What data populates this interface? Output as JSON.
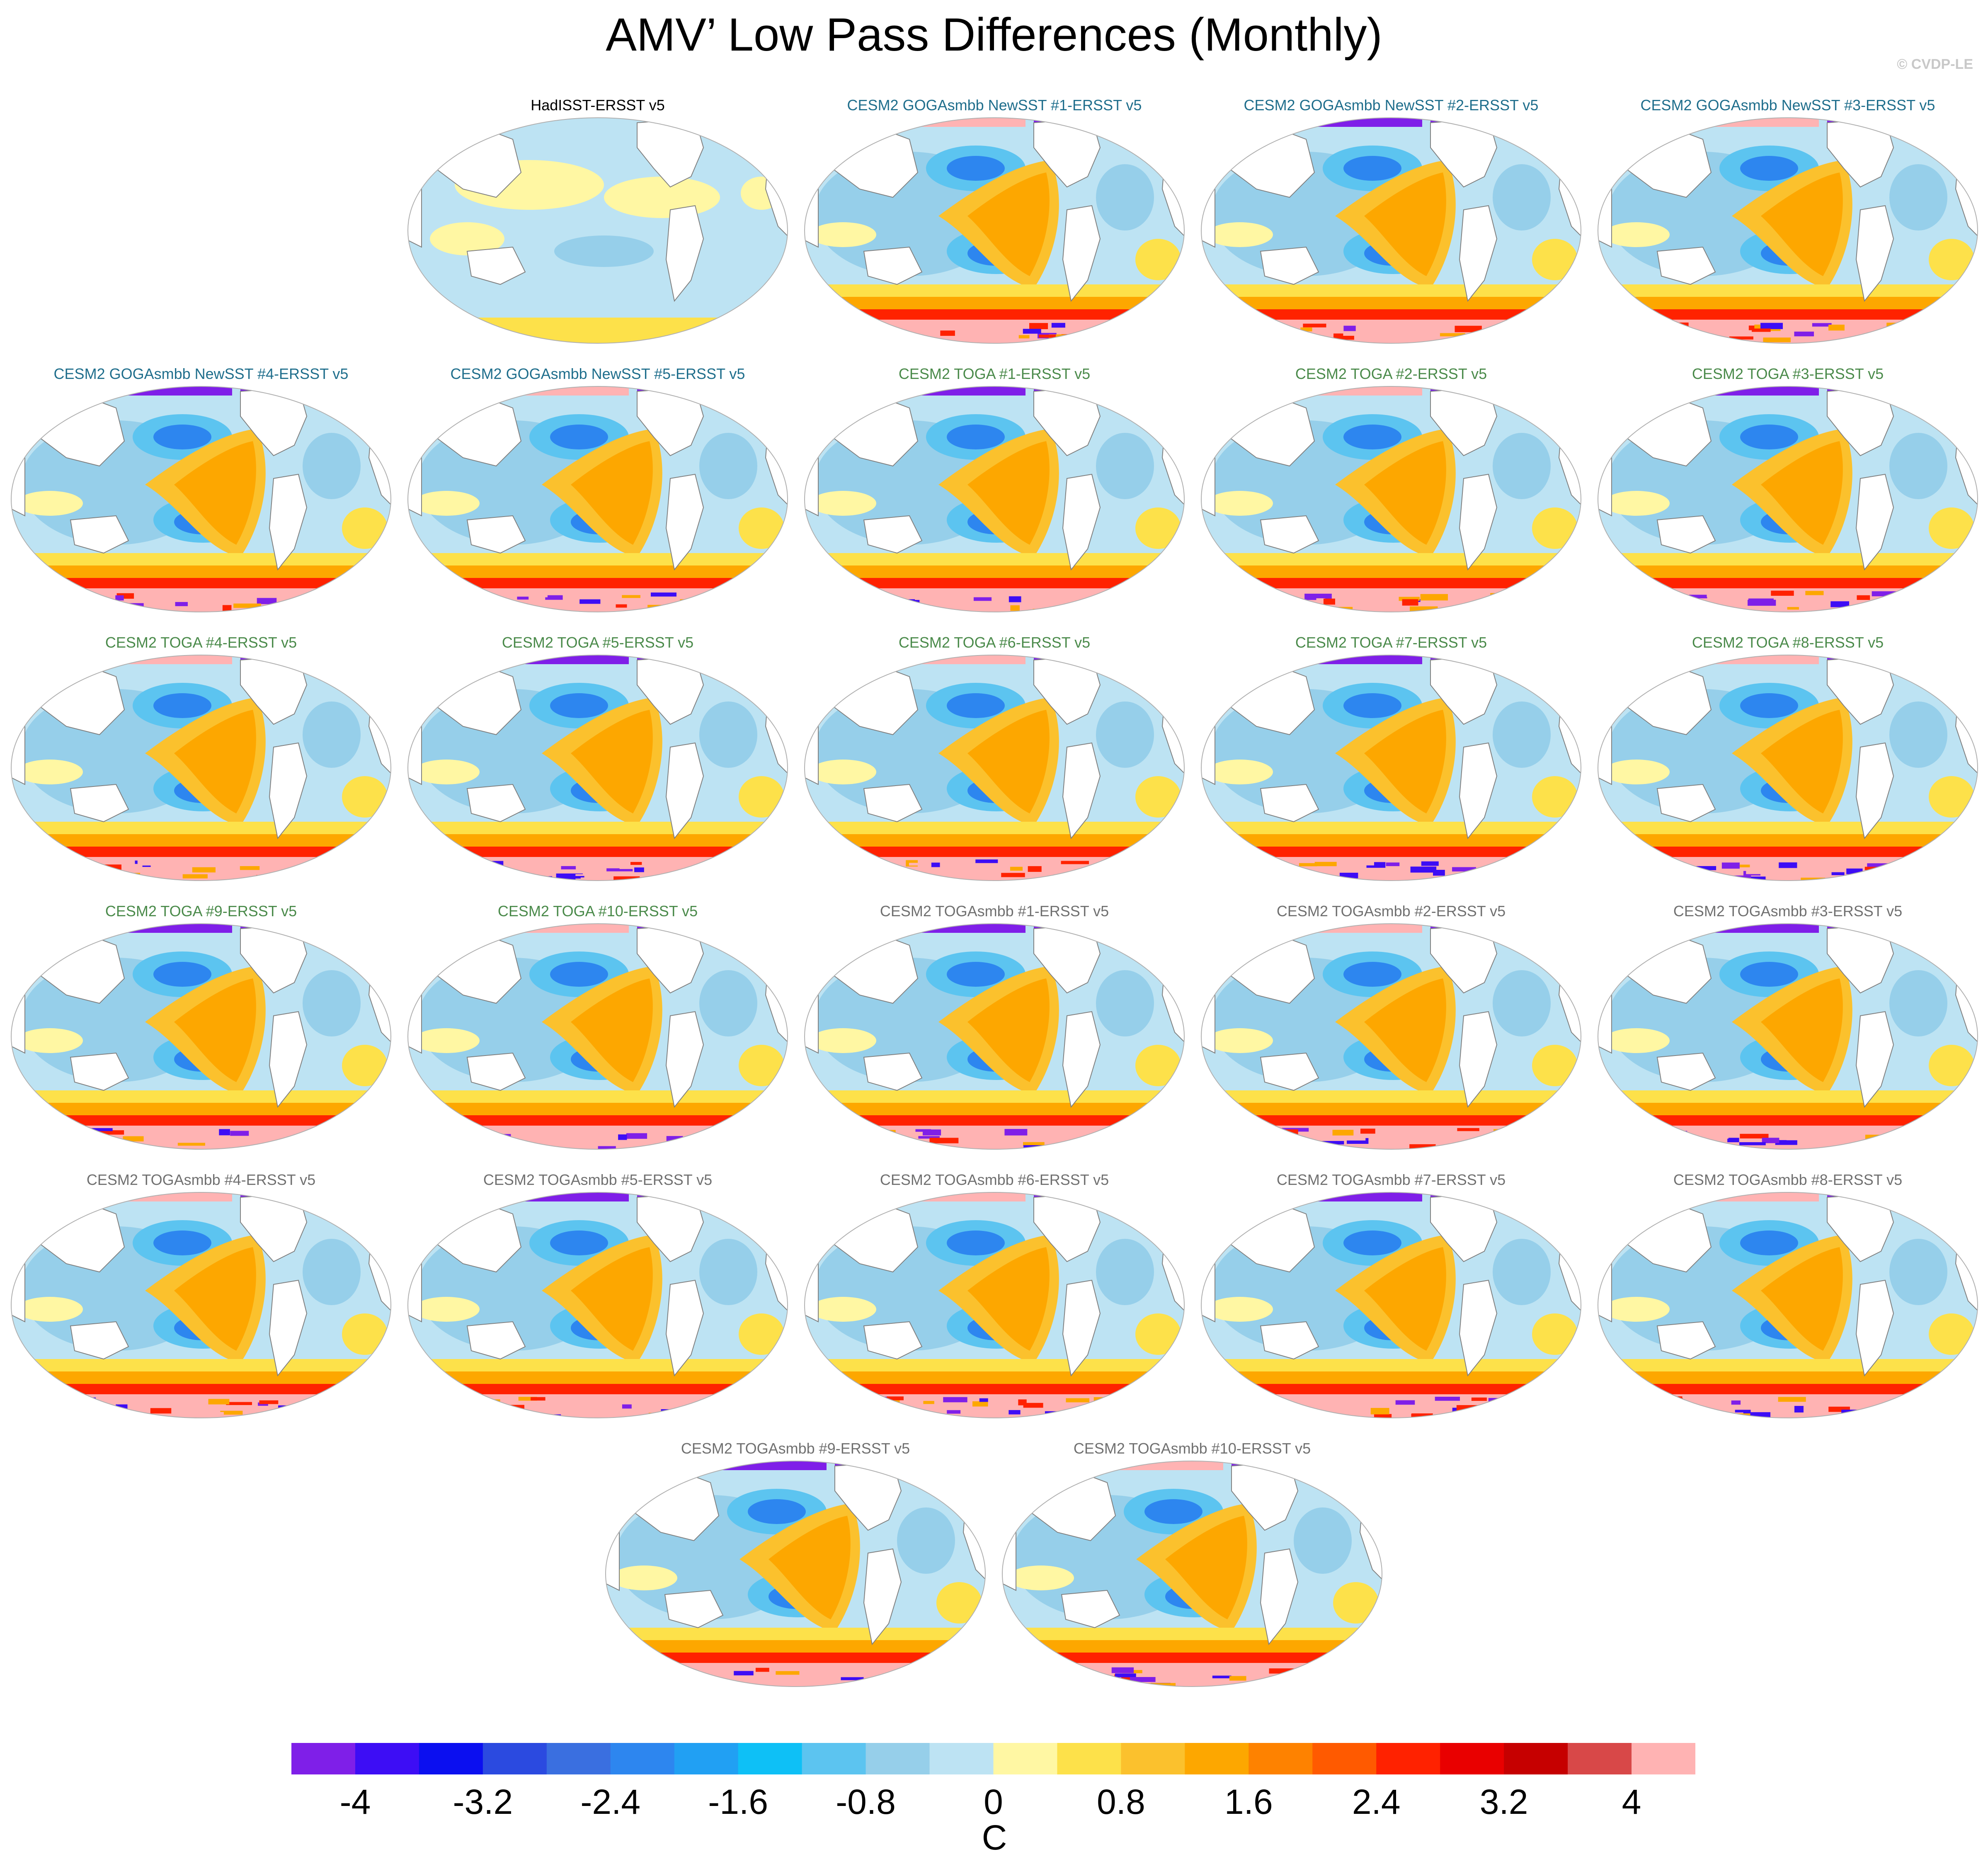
{
  "title": "AMV’ Low Pass Differences (Monthly)",
  "credit": "© CVDP-LE",
  "panels": [
    {
      "label": "HadISST-ERSST v5",
      "color": "#000000",
      "style": "obs"
    },
    {
      "label": "CESM2 GOGAsmbb NewSST #1-ERSST v5",
      "color": "#1f6e8c",
      "style": "model"
    },
    {
      "label": "CESM2 GOGAsmbb NewSST #2-ERSST v5",
      "color": "#1f6e8c",
      "style": "model"
    },
    {
      "label": "CESM2 GOGAsmbb NewSST #3-ERSST v5",
      "color": "#1f6e8c",
      "style": "model"
    },
    {
      "label": "CESM2 GOGAsmbb NewSST #4-ERSST v5",
      "color": "#1f6e8c",
      "style": "model"
    },
    {
      "label": "CESM2 GOGAsmbb NewSST #5-ERSST v5",
      "color": "#1f6e8c",
      "style": "model"
    },
    {
      "label": "CESM2 TOGA #1-ERSST v5",
      "color": "#4a8a4a",
      "style": "model"
    },
    {
      "label": "CESM2 TOGA #2-ERSST v5",
      "color": "#4a8a4a",
      "style": "model"
    },
    {
      "label": "CESM2 TOGA #3-ERSST v5",
      "color": "#4a8a4a",
      "style": "model"
    },
    {
      "label": "CESM2 TOGA #4-ERSST v5",
      "color": "#4a8a4a",
      "style": "model"
    },
    {
      "label": "CESM2 TOGA #5-ERSST v5",
      "color": "#4a8a4a",
      "style": "model"
    },
    {
      "label": "CESM2 TOGA #6-ERSST v5",
      "color": "#4a8a4a",
      "style": "model"
    },
    {
      "label": "CESM2 TOGA #7-ERSST v5",
      "color": "#4a8a4a",
      "style": "model"
    },
    {
      "label": "CESM2 TOGA #8-ERSST v5",
      "color": "#4a8a4a",
      "style": "model"
    },
    {
      "label": "CESM2 TOGA #9-ERSST v5",
      "color": "#4a8a4a",
      "style": "model"
    },
    {
      "label": "CESM2 TOGA #10-ERSST v5",
      "color": "#4a8a4a",
      "style": "model"
    },
    {
      "label": "CESM2 TOGAsmbb #1-ERSST v5",
      "color": "#707070",
      "style": "model"
    },
    {
      "label": "CESM2 TOGAsmbb #2-ERSST v5",
      "color": "#707070",
      "style": "model"
    },
    {
      "label": "CESM2 TOGAsmbb #3-ERSST v5",
      "color": "#707070",
      "style": "model"
    },
    {
      "label": "CESM2 TOGAsmbb #4-ERSST v5",
      "color": "#707070",
      "style": "model"
    },
    {
      "label": "CESM2 TOGAsmbb #5-ERSST v5",
      "color": "#707070",
      "style": "model"
    },
    {
      "label": "CESM2 TOGAsmbb #6-ERSST v5",
      "color": "#707070",
      "style": "model"
    },
    {
      "label": "CESM2 TOGAsmbb #7-ERSST v5",
      "color": "#707070",
      "style": "model"
    },
    {
      "label": "CESM2 TOGAsmbb #8-ERSST v5",
      "color": "#707070",
      "style": "model"
    },
    {
      "label": "CESM2 TOGAsmbb #9-ERSST v5",
      "color": "#707070",
      "style": "model"
    },
    {
      "label": "CESM2 TOGAsmbb #10-ERSST v5",
      "color": "#707070",
      "style": "model"
    }
  ],
  "colorbar": {
    "colors": [
      "#7f1fe8",
      "#3d0df5",
      "#0b0ff0",
      "#2b4ae0",
      "#3a6fe0",
      "#2d86ef",
      "#21a0f3",
      "#0ec0f6",
      "#5cc4f0",
      "#96cfea",
      "#bde3f3",
      "#fff7a3",
      "#fde14a",
      "#fbc12d",
      "#fda700",
      "#fe8200",
      "#ff5a00",
      "#ff2200",
      "#e90000",
      "#c60000",
      "#d84848",
      "#ffb3b3"
    ],
    "ticks": [
      "-4",
      "-3.2",
      "-2.4",
      "-1.6",
      "-0.8",
      "0",
      "0.8",
      "1.6",
      "2.4",
      "3.2",
      "4"
    ],
    "units": "C"
  }
}
